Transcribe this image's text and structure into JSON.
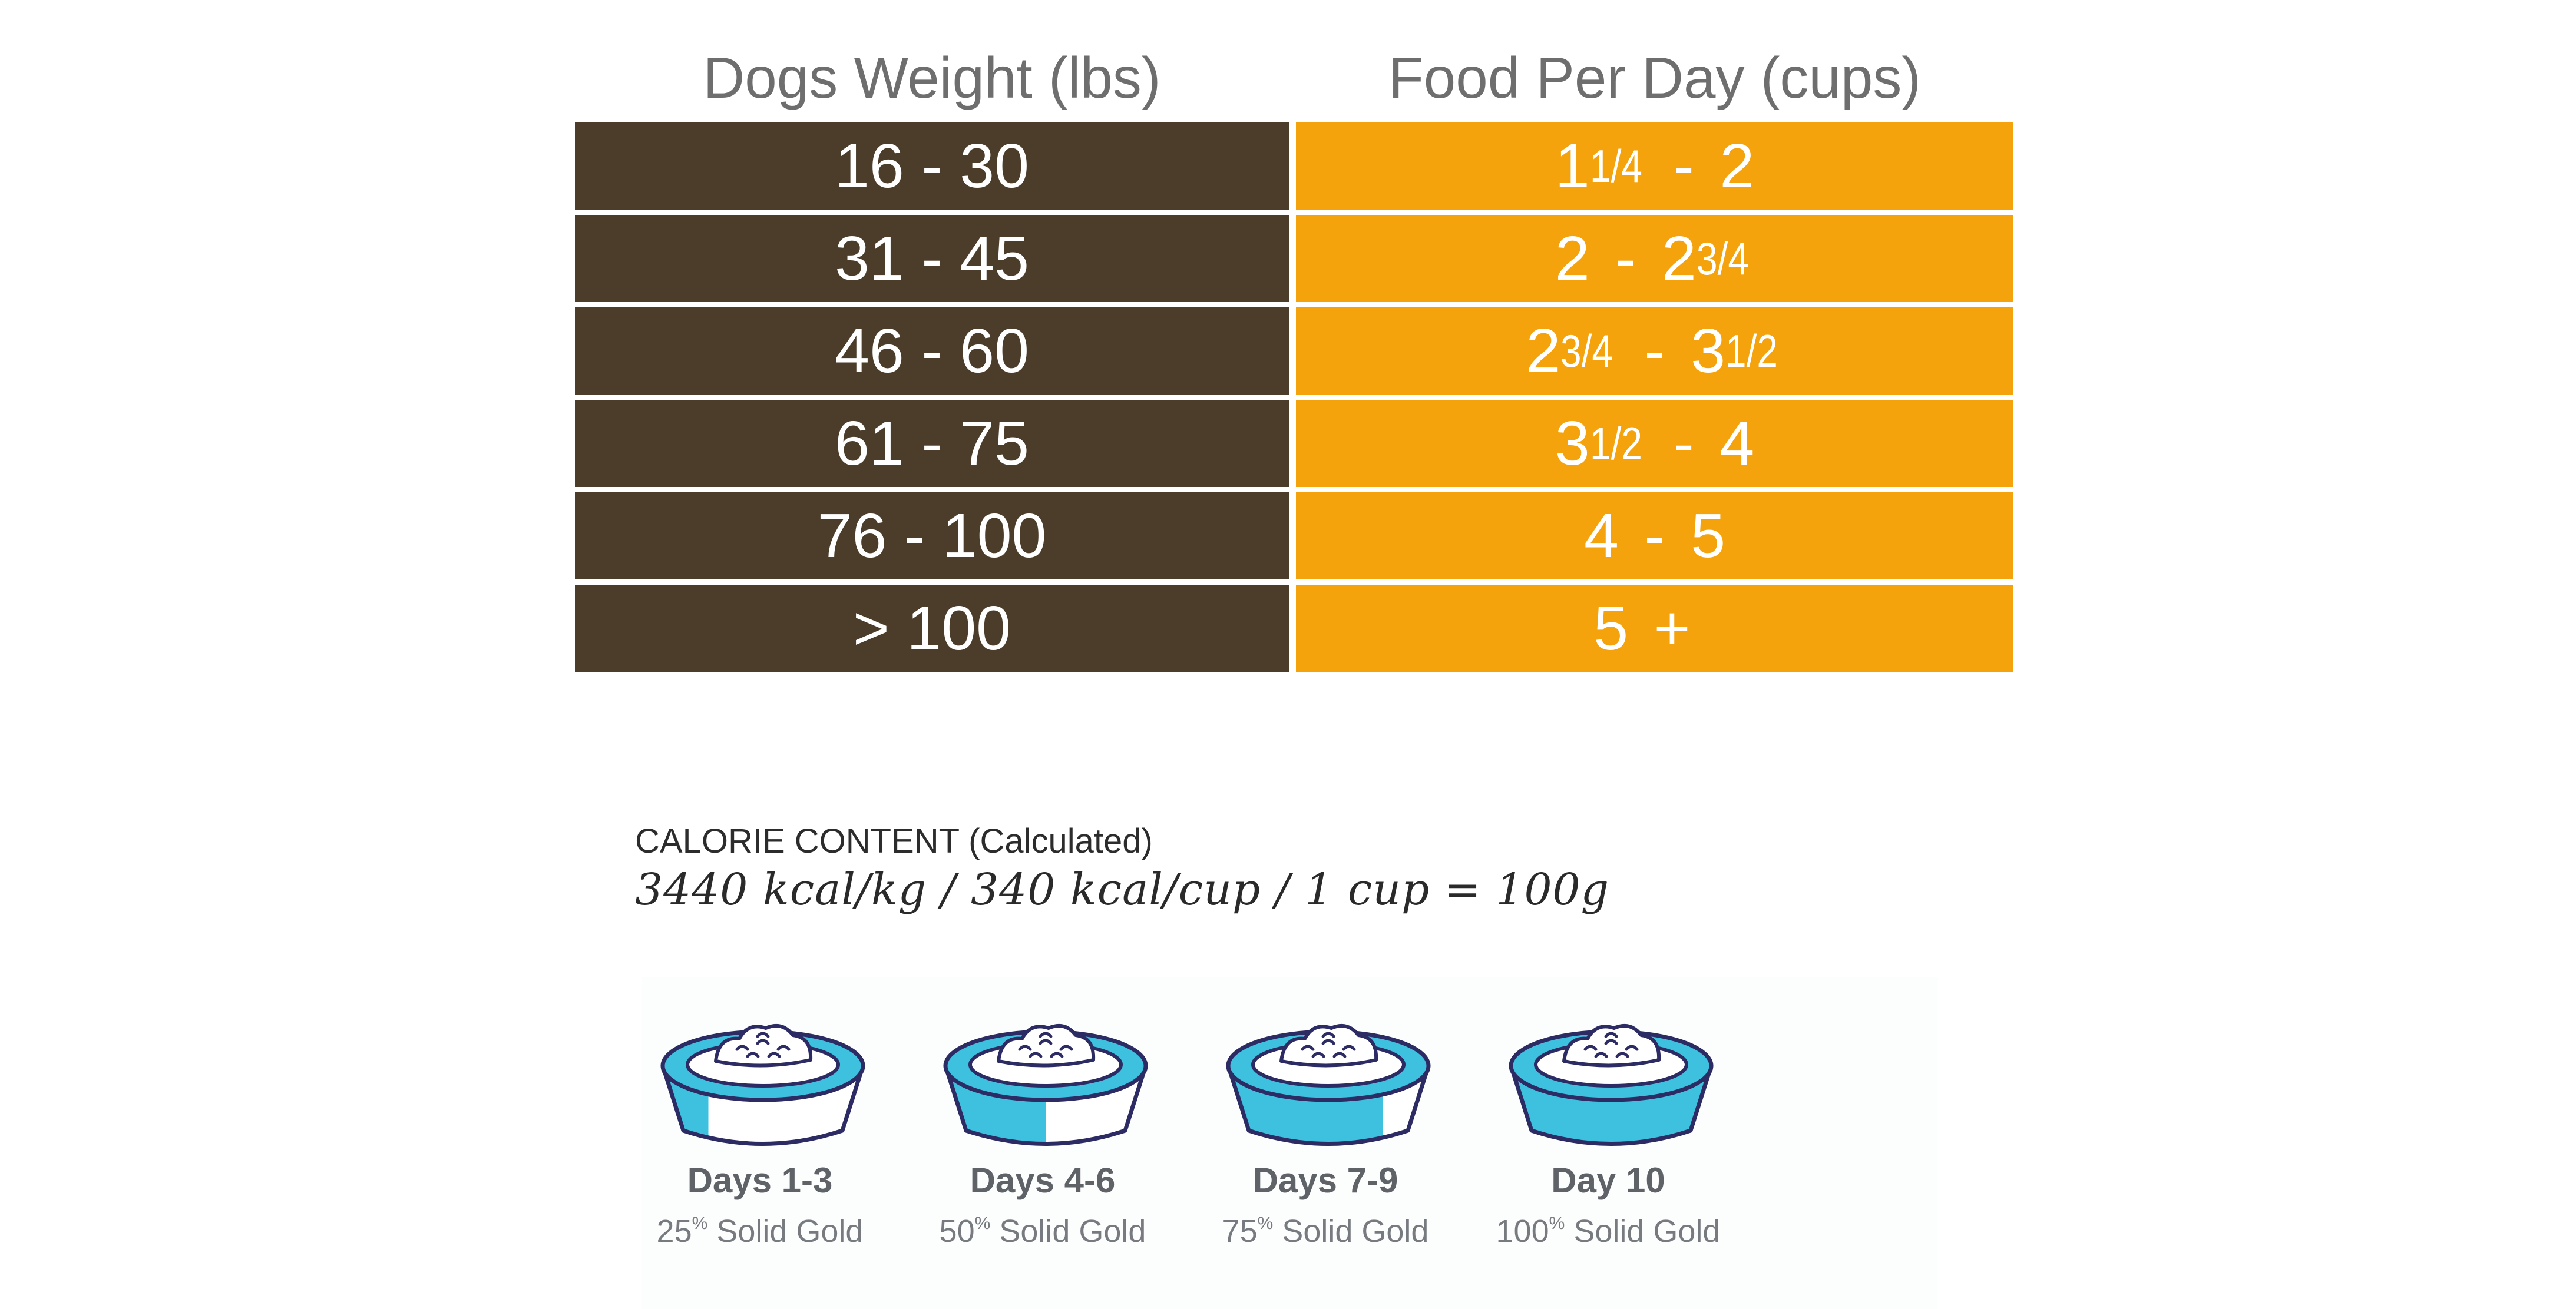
{
  "table": {
    "headers": {
      "weight": "Dogs Weight (lbs)",
      "food": "Food Per Day (cups)"
    },
    "rows": [
      {
        "weight": "16 - 30",
        "food": {
          "a_whole": "1",
          "a_frac": "1/4",
          "mid": " - ",
          "b_whole": "2",
          "b_frac": ""
        }
      },
      {
        "weight": "31 - 45",
        "food": {
          "a_whole": "2",
          "a_frac": "",
          "mid": " - ",
          "b_whole": "2",
          "b_frac": "3/4"
        }
      },
      {
        "weight": "46 - 60",
        "food": {
          "a_whole": "2",
          "a_frac": "3/4",
          "mid": " - ",
          "b_whole": "3",
          "b_frac": "1/2"
        }
      },
      {
        "weight": "61 - 75",
        "food": {
          "a_whole": "3",
          "a_frac": "1/2",
          "mid": " - ",
          "b_whole": "4",
          "b_frac": ""
        }
      },
      {
        "weight": "76 - 100",
        "food": {
          "a_whole": "4",
          "a_frac": "",
          "mid": " - ",
          "b_whole": "5",
          "b_frac": ""
        }
      },
      {
        "weight": "> 100",
        "food": {
          "a_whole": "5",
          "a_frac": "",
          "mid": " + ",
          "b_whole": "",
          "b_frac": ""
        }
      }
    ],
    "colors": {
      "weight_bg": "#4c3d2b",
      "food_bg": "#f4a30c",
      "text": "#ffffff"
    }
  },
  "calorie": {
    "label": "CALORIE CONTENT (Calculated)",
    "values": "3440 kcal/kg / 340 kcal/cup / 1 cup = 100g"
  },
  "transition": {
    "steps": [
      {
        "day": "Days 1-3",
        "percent": "25",
        "percent_sign": "%",
        "product": " Solid Gold",
        "fill": 0.25
      },
      {
        "day": "Days 4-6",
        "percent": "50",
        "percent_sign": "%",
        "product": " Solid Gold",
        "fill": 0.5
      },
      {
        "day": "Days 7-9",
        "percent": "75",
        "percent_sign": "%",
        "product": " Solid Gold",
        "fill": 0.75
      },
      {
        "day": "Day 10",
        "percent": "100",
        "percent_sign": "%",
        "product": " Solid Gold",
        "fill": 1.0
      }
    ],
    "colors": {
      "bowl_fill": "#3ec0df",
      "bowl_outline": "#2c2b63"
    }
  }
}
